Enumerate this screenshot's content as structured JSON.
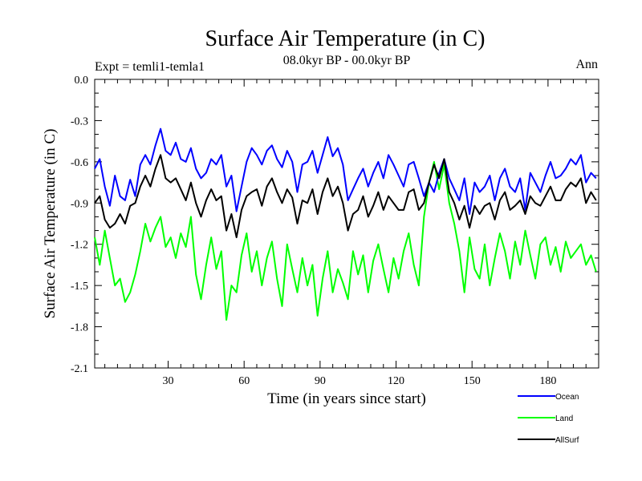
{
  "chart_data": {
    "type": "line",
    "title": "Surface Air Temperature (in C)",
    "subtitle": "08.0kyr BP - 00.0kyr BP",
    "left_label": "Expt = temli1-temla1",
    "right_label": "Ann",
    "xlabel": "Time (in years since start)",
    "ylabel": "Surface Air Temperature (in C)",
    "xlim": [
      1,
      200
    ],
    "ylim": [
      -2.1,
      0.0
    ],
    "x_ticks": [
      30,
      60,
      90,
      120,
      150,
      180
    ],
    "x_tick_labels": [
      "30",
      "60",
      "90",
      "120",
      "150",
      "180"
    ],
    "y_ticks": [
      -2.1,
      -1.8,
      -1.5,
      -1.2,
      -0.9,
      -0.6,
      -0.3,
      0.0
    ],
    "y_tick_labels": [
      "-2.1",
      "-1.8",
      "-1.5",
      "-1.2",
      "-0.9",
      "-0.6",
      "-0.3",
      "0.0"
    ],
    "grid": false,
    "legend_position": "bottom-right",
    "x": [
      1,
      3,
      5,
      7,
      9,
      11,
      13,
      15,
      17,
      19,
      21,
      23,
      25,
      27,
      29,
      31,
      33,
      35,
      37,
      39,
      41,
      43,
      45,
      47,
      49,
      51,
      53,
      55,
      57,
      59,
      61,
      63,
      65,
      67,
      69,
      71,
      73,
      75,
      77,
      79,
      81,
      83,
      85,
      87,
      89,
      91,
      93,
      95,
      97,
      99,
      101,
      103,
      105,
      107,
      109,
      111,
      113,
      115,
      117,
      119,
      121,
      123,
      125,
      127,
      129,
      131,
      133,
      135,
      137,
      139,
      141,
      143,
      145,
      147,
      149,
      151,
      153,
      155,
      157,
      159,
      161,
      163,
      165,
      167,
      169,
      171,
      173,
      175,
      177,
      179,
      181,
      183,
      185,
      187,
      189,
      191,
      193,
      195,
      197,
      199
    ],
    "series": [
      {
        "name": "Ocean",
        "color": "#0000ff",
        "values": [
          -0.65,
          -0.58,
          -0.78,
          -0.92,
          -0.7,
          -0.85,
          -0.88,
          -0.73,
          -0.85,
          -0.62,
          -0.55,
          -0.62,
          -0.48,
          -0.36,
          -0.52,
          -0.55,
          -0.46,
          -0.58,
          -0.6,
          -0.5,
          -0.65,
          -0.72,
          -0.68,
          -0.58,
          -0.62,
          -0.55,
          -0.78,
          -0.7,
          -0.96,
          -0.78,
          -0.6,
          -0.5,
          -0.55,
          -0.62,
          -0.52,
          -0.48,
          -0.58,
          -0.64,
          -0.52,
          -0.6,
          -0.82,
          -0.62,
          -0.6,
          -0.52,
          -0.68,
          -0.55,
          -0.42,
          -0.56,
          -0.5,
          -0.62,
          -0.88,
          -0.8,
          -0.72,
          -0.65,
          -0.78,
          -0.68,
          -0.6,
          -0.72,
          -0.55,
          -0.62,
          -0.7,
          -0.78,
          -0.62,
          -0.6,
          -0.72,
          -0.85,
          -0.75,
          -0.82,
          -0.68,
          -0.58,
          -0.72,
          -0.8,
          -0.88,
          -0.72,
          -0.98,
          -0.75,
          -0.82,
          -0.78,
          -0.7,
          -0.88,
          -0.72,
          -0.65,
          -0.78,
          -0.82,
          -0.72,
          -0.95,
          -0.68,
          -0.75,
          -0.82,
          -0.7,
          -0.6,
          -0.72,
          -0.7,
          -0.65,
          -0.58,
          -0.62,
          -0.55,
          -0.75,
          -0.68,
          -0.72
        ]
      },
      {
        "name": "Land",
        "color": "#00ff00",
        "values": [
          -1.15,
          -1.35,
          -1.1,
          -1.3,
          -1.5,
          -1.45,
          -1.62,
          -1.55,
          -1.42,
          -1.25,
          -1.05,
          -1.18,
          -1.08,
          -1.0,
          -1.22,
          -1.15,
          -1.3,
          -1.12,
          -1.22,
          -1.0,
          -1.42,
          -1.6,
          -1.35,
          -1.15,
          -1.38,
          -1.25,
          -1.75,
          -1.5,
          -1.55,
          -1.28,
          -1.12,
          -1.4,
          -1.25,
          -1.5,
          -1.3,
          -1.18,
          -1.45,
          -1.65,
          -1.2,
          -1.38,
          -1.55,
          -1.3,
          -1.5,
          -1.35,
          -1.72,
          -1.45,
          -1.25,
          -1.55,
          -1.38,
          -1.48,
          -1.6,
          -1.25,
          -1.42,
          -1.28,
          -1.55,
          -1.32,
          -1.2,
          -1.38,
          -1.55,
          -1.3,
          -1.45,
          -1.25,
          -1.12,
          -1.35,
          -1.5,
          -1.0,
          -0.75,
          -0.6,
          -0.8,
          -0.62,
          -0.9,
          -1.05,
          -1.25,
          -1.55,
          -1.15,
          -1.38,
          -1.45,
          -1.2,
          -1.5,
          -1.3,
          -1.12,
          -1.25,
          -1.45,
          -1.18,
          -1.35,
          -1.1,
          -1.28,
          -1.45,
          -1.2,
          -1.15,
          -1.35,
          -1.22,
          -1.4,
          -1.18,
          -1.3,
          -1.25,
          -1.2,
          -1.35,
          -1.28,
          -1.4
        ]
      },
      {
        "name": "AllSurf",
        "color": "#000000",
        "values": [
          -0.9,
          -0.85,
          -1.02,
          -1.08,
          -1.05,
          -0.98,
          -1.05,
          -0.92,
          -0.9,
          -0.78,
          -0.7,
          -0.78,
          -0.65,
          -0.55,
          -0.72,
          -0.75,
          -0.72,
          -0.8,
          -0.88,
          -0.75,
          -0.9,
          -1.0,
          -0.88,
          -0.8,
          -0.88,
          -0.85,
          -1.1,
          -0.98,
          -1.15,
          -0.95,
          -0.85,
          -0.82,
          -0.8,
          -0.92,
          -0.78,
          -0.72,
          -0.82,
          -0.9,
          -0.8,
          -0.86,
          -1.05,
          -0.88,
          -0.9,
          -0.8,
          -0.98,
          -0.82,
          -0.72,
          -0.85,
          -0.78,
          -0.9,
          -1.1,
          -0.98,
          -0.95,
          -0.85,
          -1.0,
          -0.92,
          -0.82,
          -0.95,
          -0.85,
          -0.9,
          -0.95,
          -0.95,
          -0.82,
          -0.8,
          -0.95,
          -0.9,
          -0.75,
          -0.62,
          -0.72,
          -0.58,
          -0.82,
          -0.9,
          -1.02,
          -0.92,
          -1.08,
          -0.92,
          -0.98,
          -0.92,
          -0.9,
          -1.02,
          -0.88,
          -0.82,
          -0.95,
          -0.92,
          -0.88,
          -0.98,
          -0.85,
          -0.9,
          -0.92,
          -0.85,
          -0.78,
          -0.88,
          -0.88,
          -0.8,
          -0.75,
          -0.78,
          -0.72,
          -0.9,
          -0.82,
          -0.88
        ]
      }
    ]
  }
}
